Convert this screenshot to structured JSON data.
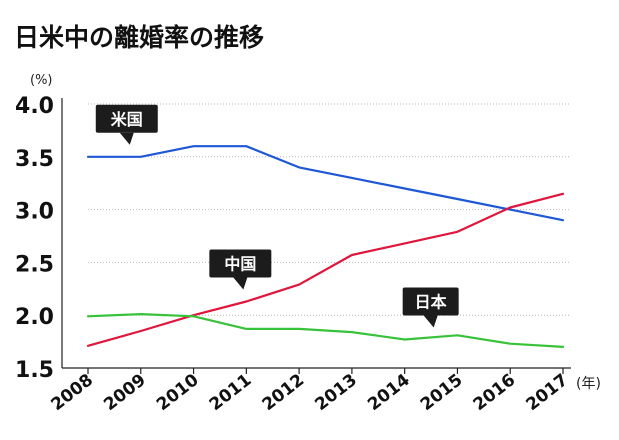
{
  "chart_data": {
    "type": "line",
    "title": "日米中の離婚率の推移",
    "unit_label": "(%)",
    "x_unit_label": "(年)",
    "xlabel": "",
    "ylabel": "",
    "x": [
      "2008",
      "2009",
      "2010",
      "2011",
      "2012",
      "2013",
      "2014",
      "2015",
      "2016",
      "2017"
    ],
    "y_ticks": [
      "4.0",
      "3.5",
      "3.0",
      "2.5",
      "2.0",
      "1.5"
    ],
    "ylim": [
      1.5,
      4.0
    ],
    "grid": true,
    "legend": "callout labels on lines",
    "series": [
      {
        "name": "米国",
        "color": "#1f57d6",
        "values": [
          3.5,
          3.5,
          3.6,
          3.6,
          3.4,
          3.3,
          3.2,
          3.1,
          3.0,
          2.9
        ]
      },
      {
        "name": "中国",
        "color": "#e0163c",
        "values": [
          1.71,
          1.85,
          2.0,
          2.13,
          2.29,
          2.57,
          2.68,
          2.79,
          3.02,
          3.15
        ]
      },
      {
        "name": "日本",
        "color": "#38c23a",
        "values": [
          1.99,
          2.01,
          1.99,
          1.87,
          1.87,
          1.84,
          1.77,
          1.81,
          1.73,
          1.7
        ]
      }
    ]
  }
}
